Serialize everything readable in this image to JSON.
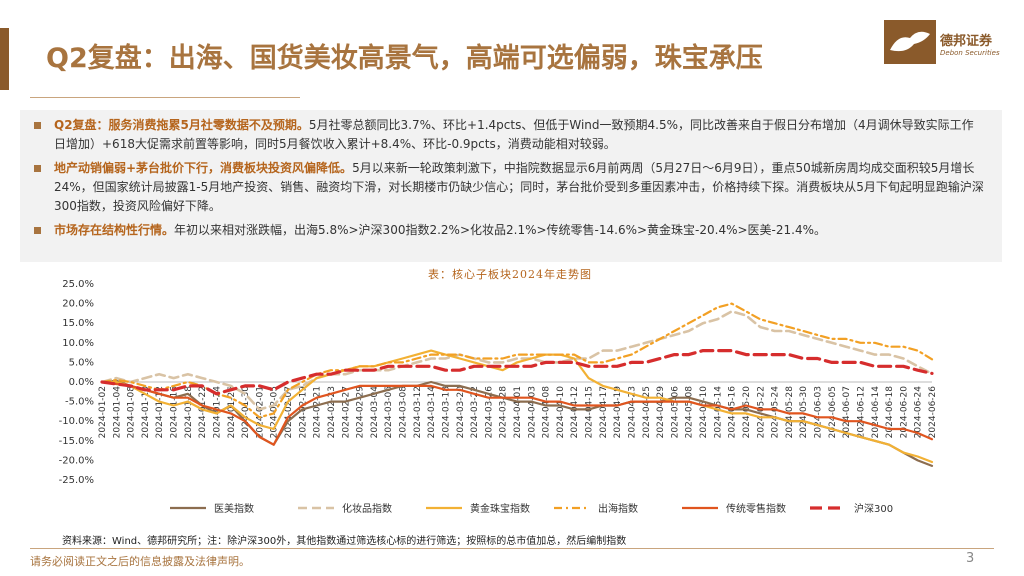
{
  "header": {
    "title": "Q2复盘：出海、国货美妆高景气，高端可选偏弱，珠宝承压",
    "logo_cn": "德邦证券",
    "logo_en": "Debon Securities"
  },
  "bullets": [
    {
      "highlight": "Q2复盘：服务消费拖累5月社零数据不及预期。",
      "text": "5月社零总额同比3.7%、环比+1.4pcts、但低于Wind一致预期4.5%，同比改善来自于假日分布增加（4月调休导致实际工作日增加）+618大促需求前置等影响，同时5月餐饮收入累计+8.4%、环比-0.9pcts，消费动能相对较弱。"
    },
    {
      "highlight": "地产动销偏弱+茅台批价下行，消费板块投资风偏降低。",
      "text": "5月以来新一轮政策刺激下，中指院数据显示6月前两周（5月27日～6月9日），重点50城新房周均成交面积较5月增长24%，但国家统计局披露1-5月地产投资、销售、融资均下滑，对长期楼市仍缺少信心；同时，茅台批价受到多重因素冲击，价格持续下探。消费板块从5月下旬起明显跑输沪深300指数，投资风险偏好下降。"
    },
    {
      "highlight": "市场存在结构性行情。",
      "text": "年初以来相对涨跌幅，出海5.8%>沪深300指数2.2%>化妆品2.1%>传统零售-14.6%>黄金珠宝-20.4%>医美-21.4%。"
    }
  ],
  "chart_data": {
    "type": "line",
    "title": "表：核心子板块2024年走势图",
    "ylim": [
      -25,
      25
    ],
    "yticks": [
      "25.0%",
      "20.0%",
      "15.0%",
      "10.0%",
      "5.0%",
      "0.0%",
      "-5.0%",
      "-10.0%",
      "-15.0%",
      "-20.0%",
      "-25.0%"
    ],
    "x_labels": [
      "2024-01-02",
      "2024-01-04",
      "2024-01-08",
      "2024-01-10",
      "2024-01-12",
      "2024-01-16",
      "2024-01-18",
      "2024-01-22",
      "2024-01-24",
      "2024-01-26",
      "2024-01-30",
      "2024-02-01",
      "2024-02-05",
      "2024-02-07",
      "2024-02-19",
      "2024-02-21",
      "2024-02-23",
      "2024-02-27",
      "2024-02-29",
      "2024-03-04",
      "2024-03-06",
      "2024-03-08",
      "2024-03-12",
      "2024-03-14",
      "2024-03-18",
      "2024-03-20",
      "2024-03-22",
      "2024-03-26",
      "2024-03-28",
      "2024-04-01",
      "2024-04-03",
      "2024-04-08",
      "2024-04-10",
      "2024-04-12",
      "2024-04-15",
      "2024-04-17",
      "2024-04-19",
      "2024-04-23",
      "2024-04-25",
      "2024-04-29",
      "2024-05-06",
      "2024-05-08",
      "2024-05-10",
      "2024-05-14",
      "2024-05-16",
      "2024-05-20",
      "2024-05-22",
      "2024-05-24",
      "2024-05-28",
      "2024-05-30",
      "2024-06-03",
      "2024-06-05",
      "2024-06-07",
      "2024-06-12",
      "2024-06-14",
      "2024-06-18",
      "2024-06-20",
      "2024-06-24",
      "2024-06-26"
    ],
    "series": [
      {
        "name": "医美指数",
        "color": "#8c6d4f",
        "style": "solid",
        "values": [
          0,
          0.3,
          -1,
          -2,
          -3,
          -4,
          -3,
          -6,
          -8,
          -6,
          -10,
          -14,
          -16,
          -10,
          -7,
          -6,
          -5,
          -5,
          -4,
          -3,
          -2,
          -1,
          -1,
          0,
          -1,
          -1,
          -2,
          -3,
          -4,
          -5,
          -5,
          -6,
          -6,
          -7,
          -7,
          -6,
          -6,
          -5,
          -5,
          -5,
          -4,
          -4,
          -5,
          -6,
          -7,
          -7,
          -8,
          -9,
          -10,
          -10,
          -11,
          -12,
          -13,
          -14,
          -15,
          -16,
          -18,
          -20,
          -21.4
        ]
      },
      {
        "name": "化妆品指数",
        "color": "#d9c3a5",
        "style": "dash",
        "values": [
          0,
          1,
          0,
          1,
          2,
          1,
          2,
          1,
          0,
          -1,
          -3,
          -7,
          -6,
          -2,
          -1,
          1,
          2,
          2,
          3,
          3,
          3,
          4,
          5,
          6,
          6,
          7,
          6,
          5,
          5,
          6,
          6,
          5,
          5,
          6,
          6,
          8,
          8,
          9,
          10,
          11,
          12,
          13,
          15,
          16,
          18,
          17,
          14,
          13,
          13,
          12,
          11,
          10,
          9,
          8,
          7,
          7,
          6,
          4,
          2.1
        ]
      },
      {
        "name": "黄金珠宝指数",
        "color": "#f2b134",
        "style": "solid",
        "values": [
          0,
          0,
          -1,
          -3,
          -5,
          -6,
          -5,
          -7,
          -8,
          -6,
          -9,
          -11,
          -12,
          -5,
          -2,
          1,
          2,
          3,
          4,
          4,
          5,
          6,
          7,
          8,
          7,
          6,
          5,
          4,
          3,
          5,
          6,
          7,
          7,
          6,
          1,
          -1,
          -2,
          -3,
          -4,
          -4,
          -5,
          -5,
          -6,
          -7,
          -8,
          -8,
          -9,
          -9,
          -10,
          -10,
          -11,
          -12,
          -13,
          -14,
          -15,
          -16,
          -18,
          -19,
          -20.4
        ]
      },
      {
        "name": "出海指数",
        "color": "#f2a024",
        "style": "dashdot",
        "values": [
          0,
          0.5,
          0,
          -1,
          -2,
          -1,
          0,
          -1,
          -3,
          -4,
          -6,
          -9,
          -8,
          -2,
          0,
          2,
          3,
          3,
          4,
          4,
          5,
          5,
          6,
          7,
          7,
          7,
          6,
          6,
          6,
          7,
          7,
          7,
          7,
          7,
          5,
          5,
          6,
          7,
          9,
          11,
          13,
          15,
          17,
          19,
          20,
          18,
          16,
          15,
          14,
          13,
          12,
          11,
          11,
          10,
          10,
          9,
          9,
          8,
          5.8
        ]
      },
      {
        "name": "传统零售指数",
        "color": "#e0551f",
        "style": "solid",
        "values": [
          0,
          -0.5,
          -1,
          -2,
          -3,
          -4,
          -4,
          -6,
          -7,
          -8,
          -10,
          -14,
          -16,
          -9,
          -6,
          -4,
          -3,
          -2,
          -1,
          -1,
          -1,
          -1,
          -1,
          -1,
          -2,
          -2,
          -3,
          -4,
          -4,
          -4,
          -4,
          -5,
          -5,
          -6,
          -6,
          -6,
          -6,
          -5,
          -5,
          -5,
          -5,
          -5,
          -6,
          -6,
          -7,
          -6,
          -7,
          -7,
          -8,
          -8,
          -9,
          -9,
          -10,
          -10,
          -11,
          -12,
          -12,
          -13,
          -14.6
        ]
      },
      {
        "name": "沪深300",
        "color": "#d62d2d",
        "style": "bigdash",
        "values": [
          0,
          -0.5,
          -1,
          -2,
          -2,
          -2,
          -1,
          -1,
          -3,
          -2,
          -1,
          -1,
          -2,
          0,
          1,
          2,
          2,
          3,
          3,
          3,
          4,
          4,
          4,
          4,
          3,
          3,
          4,
          4,
          4,
          4,
          4,
          5,
          5,
          5,
          4,
          4,
          4,
          5,
          5,
          6,
          7,
          7,
          8,
          8,
          8,
          7,
          7,
          7,
          7,
          6,
          6,
          5,
          5,
          5,
          4,
          4,
          4,
          3,
          2.2
        ]
      }
    ]
  },
  "source": "资料来源：Wind、德邦研究所；注：除沪深300外，其他指数通过筛选核心标的进行筛选；按照标的总市值加总，然后编制指数",
  "footer": {
    "disclaimer": "请务必阅读正文之后的信息披露及法律声明。",
    "page": "3"
  }
}
